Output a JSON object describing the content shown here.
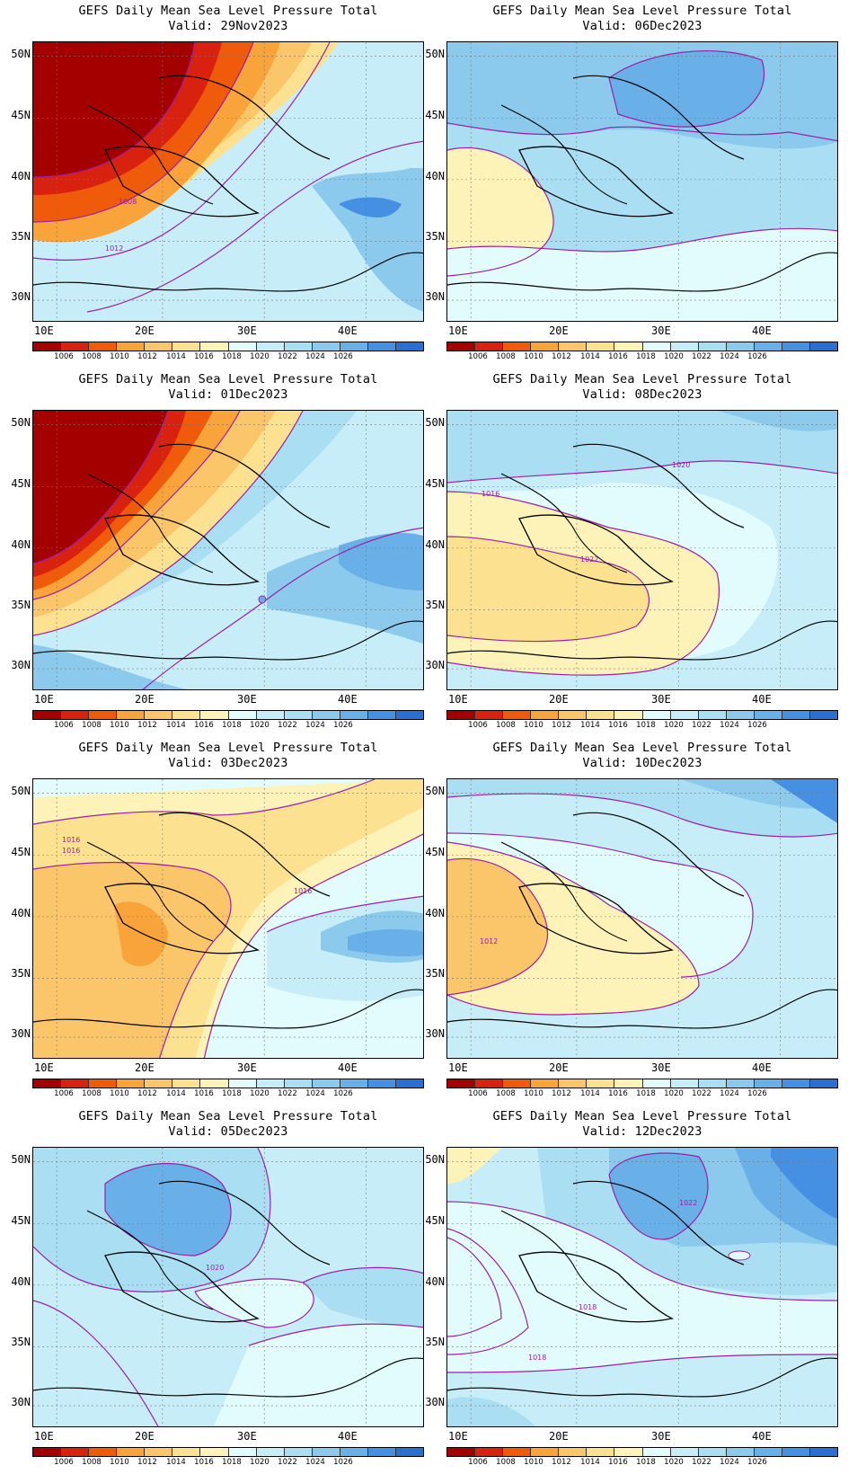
{
  "colorbar": {
    "colors": [
      "#a50000",
      "#d8220f",
      "#ef5a0b",
      "#f9a33b",
      "#fbc56a",
      "#fce190",
      "#fdf2b8",
      "#e2fbfd",
      "#c7eef8",
      "#aadff3",
      "#8ccaed",
      "#69afe8",
      "#4690e3",
      "#2c6fd3"
    ],
    "labels": [
      "1006",
      "1008",
      "1010",
      "1012",
      "1014",
      "1016",
      "1018",
      "1020",
      "1022",
      "1024",
      "1026"
    ]
  },
  "axes": {
    "y_labels": [
      "50N",
      "45N",
      "40N",
      "35N",
      "30N"
    ],
    "x_labels": [
      "10E",
      "20E",
      "30E",
      "40E"
    ]
  },
  "contour_color": "#9b1fa8",
  "panels": [
    {
      "title": "GEFS Daily Mean Sea Level Pressure Total",
      "valid": "Valid: 29Nov2023",
      "labels": [
        "1008",
        "1012"
      ]
    },
    {
      "title": "GEFS Daily Mean Sea Level Pressure Total",
      "valid": "Valid: 06Dec2023",
      "labels": []
    },
    {
      "title": "GEFS Daily Mean Sea Level Pressure Total",
      "valid": "Valid: 01Dec2023",
      "labels": []
    },
    {
      "title": "GEFS Daily Mean Sea Level Pressure Total",
      "valid": "Valid: 08Dec2023",
      "labels": [
        "1016",
        "1020",
        "1022"
      ]
    },
    {
      "title": "GEFS Daily Mean Sea Level Pressure Total",
      "valid": "Valid: 03Dec2023",
      "labels": [
        "1016",
        "1016",
        "1016"
      ]
    },
    {
      "title": "GEFS Daily Mean Sea Level Pressure Total",
      "valid": "Valid: 10Dec2023",
      "labels": [
        "1012"
      ]
    },
    {
      "title": "GEFS Daily Mean Sea Level Pressure Total",
      "valid": "Valid: 05Dec2023",
      "labels": [
        "1020"
      ]
    },
    {
      "title": "GEFS Daily Mean Sea Level Pressure Total",
      "valid": "Valid: 12Dec2023",
      "labels": [
        "1022",
        "1018",
        "1018"
      ]
    }
  ]
}
